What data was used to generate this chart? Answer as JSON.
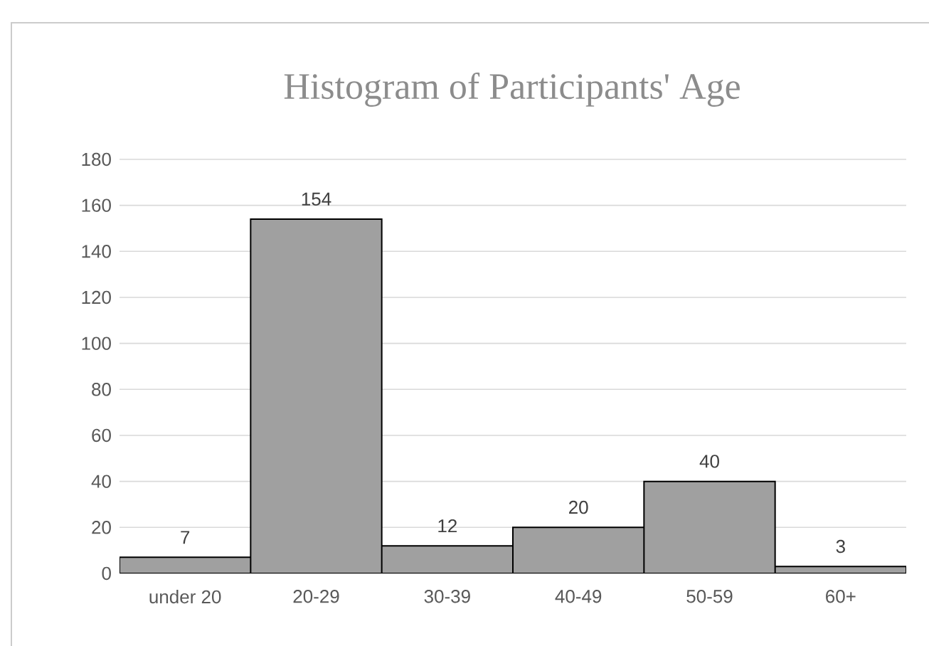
{
  "chart_data": {
    "type": "bar",
    "title": "Histogram of Participants' Age",
    "categories": [
      "under 20",
      "20-29",
      "30-39",
      "40-49",
      "50-59",
      "60+"
    ],
    "values": [
      7,
      154,
      12,
      20,
      40,
      3
    ],
    "color": "#a0a0a0",
    "ylim": [
      0,
      180
    ],
    "yticks": [
      0,
      20,
      40,
      60,
      80,
      100,
      120,
      140,
      160,
      180
    ],
    "grid": "y",
    "data_labels": true
  }
}
